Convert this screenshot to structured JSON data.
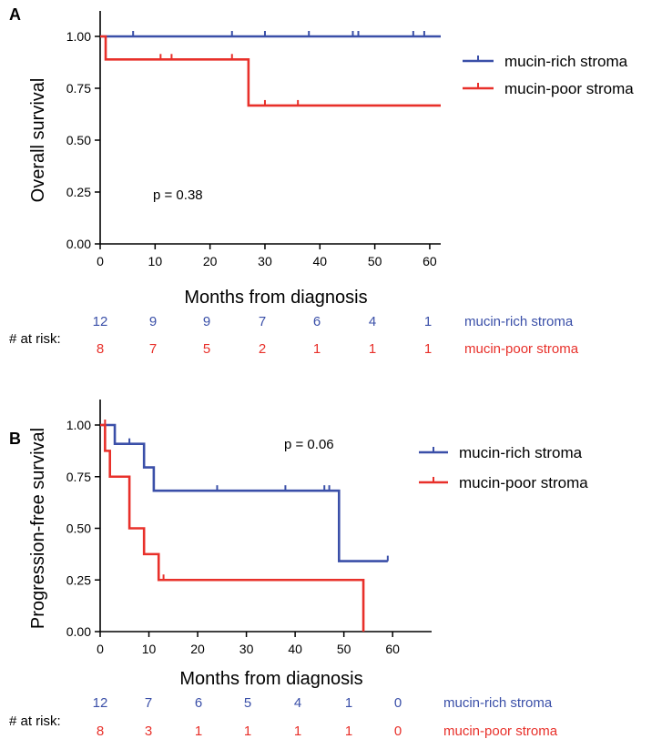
{
  "colors": {
    "rich": "#3a4fa8",
    "poor": "#e8302a",
    "axis": "#000000"
  },
  "chart_data": [
    {
      "panel_label": "A",
      "type": "line",
      "ylabel": "Overall survival",
      "xlabel": "Months from diagnosis",
      "xlim": [
        0,
        62
      ],
      "ylim": [
        0,
        1
      ],
      "xticks": [
        "0",
        "10",
        "20",
        "30",
        "40",
        "50",
        "60"
      ],
      "yticks": [
        "0.00",
        "0.25",
        "0.50",
        "0.75",
        "1.00"
      ],
      "pvalue": "p = 0.38",
      "legend_position": "right",
      "series": [
        {
          "name": "mucin-rich stroma",
          "color": "#3a4fa8",
          "step_points": [
            [
              0,
              1.0
            ],
            [
              62,
              1.0
            ]
          ],
          "censor_marks": [
            [
              6,
              1.0
            ],
            [
              24,
              1.0
            ],
            [
              30,
              1.0
            ],
            [
              38,
              1.0
            ],
            [
              46,
              1.0
            ],
            [
              47,
              1.0
            ],
            [
              57,
              1.0
            ],
            [
              59,
              1.0
            ]
          ]
        },
        {
          "name": "mucin-poor stroma",
          "color": "#e8302a",
          "step_points": [
            [
              0,
              1.0
            ],
            [
              1,
              0.889
            ],
            [
              27,
              0.667
            ],
            [
              62,
              0.667
            ]
          ],
          "censor_marks": [
            [
              11,
              0.889
            ],
            [
              13,
              0.889
            ],
            [
              24,
              0.889
            ],
            [
              30,
              0.667
            ],
            [
              36,
              0.667
            ]
          ]
        }
      ],
      "at_risk": {
        "label": "# at risk:",
        "rows": [
          {
            "name": "mucin-rich stroma",
            "color": "#3a4fa8",
            "values": [
              "12",
              "9",
              "9",
              "7",
              "6",
              "4",
              "1"
            ]
          },
          {
            "name": "mucin-poor stroma",
            "color": "#e8302a",
            "values": [
              "8",
              "7",
              "5",
              "2",
              "1",
              "1",
              "1"
            ]
          }
        ]
      }
    },
    {
      "panel_label": "B",
      "type": "line",
      "ylabel": "Progression-free survival",
      "xlabel": "Months from diagnosis",
      "xlim": [
        0,
        68
      ],
      "ylim": [
        0,
        1
      ],
      "xticks": [
        "0",
        "10",
        "20",
        "30",
        "40",
        "50",
        "60"
      ],
      "yticks": [
        "0.00",
        "0.25",
        "0.50",
        "0.75",
        "1.00"
      ],
      "pvalue": "p = 0.06",
      "legend_position": "right",
      "series": [
        {
          "name": "mucin-rich stroma",
          "color": "#3a4fa8",
          "step_points": [
            [
              0,
              1.0
            ],
            [
              3,
              0.909
            ],
            [
              9,
              0.795
            ],
            [
              11,
              0.682
            ],
            [
              49,
              0.341
            ],
            [
              59,
              0.341
            ]
          ],
          "censor_marks": [
            [
              6,
              0.909
            ],
            [
              24,
              0.682
            ],
            [
              38,
              0.682
            ],
            [
              46,
              0.682
            ],
            [
              47,
              0.682
            ],
            [
              59,
              0.341
            ]
          ]
        },
        {
          "name": "mucin-poor stroma",
          "color": "#e8302a",
          "step_points": [
            [
              0,
              1.0
            ],
            [
              1,
              0.875
            ],
            [
              2,
              0.75
            ],
            [
              6,
              0.5
            ],
            [
              9,
              0.375
            ],
            [
              12,
              0.25
            ],
            [
              54,
              0.0
            ]
          ],
          "censor_marks": [
            [
              1,
              1.0
            ],
            [
              13,
              0.25
            ]
          ]
        }
      ],
      "at_risk": {
        "label": "# at risk:",
        "rows": [
          {
            "name": "mucin-rich stroma",
            "color": "#3a4fa8",
            "values": [
              "12",
              "7",
              "6",
              "5",
              "4",
              "1",
              "0"
            ]
          },
          {
            "name": "mucin-poor stroma",
            "color": "#e8302a",
            "values": [
              "8",
              "3",
              "1",
              "1",
              "1",
              "1",
              "0"
            ]
          }
        ]
      }
    }
  ]
}
